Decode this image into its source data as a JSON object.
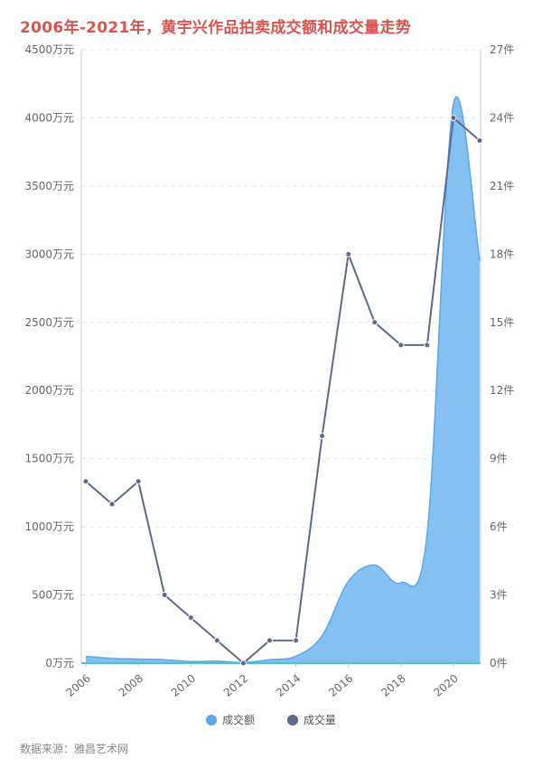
{
  "title": "2006年-2021年，黄宇兴作品拍卖成交额和成交量走势",
  "source": "数据来源：雅昌艺术网",
  "colors": {
    "title": "#d9534f",
    "amount_fill": "#7dbdf0",
    "amount_line": "#5ba8e6",
    "count_line": "#5e6a8a",
    "grid": "#e6e6e6",
    "baseline": "#4fc3c3"
  },
  "chart_data": {
    "type": "area",
    "categories": [
      "2006",
      "2007",
      "2008",
      "2009",
      "2010",
      "2011",
      "2012",
      "2013",
      "2014",
      "2015",
      "2016",
      "2017",
      "2018",
      "2019",
      "2020",
      "2021"
    ],
    "x_tick_labels": [
      "2006",
      "2008",
      "2010",
      "2012",
      "2014",
      "2016",
      "2018",
      "2020"
    ],
    "left_axis": {
      "ticks": [
        "0万元",
        "500万元",
        "1000万元",
        "1500万元",
        "2000万元",
        "2500万元",
        "3000万元",
        "3500万元",
        "4000万元",
        "4500万元"
      ],
      "ylim": [
        0,
        4500
      ]
    },
    "right_axis": {
      "ticks": [
        "0件",
        "3件",
        "6件",
        "9件",
        "12件",
        "15件",
        "18件",
        "21件",
        "24件",
        "27件"
      ],
      "ylim": [
        0,
        27
      ]
    },
    "series": [
      {
        "name": "成交额",
        "type": "area",
        "axis": "left",
        "values": [
          50,
          35,
          30,
          25,
          12,
          15,
          5,
          25,
          50,
          200,
          600,
          720,
          590,
          950,
          4100,
          2950
        ]
      },
      {
        "name": "成交量",
        "type": "line",
        "axis": "right",
        "values": [
          8,
          7,
          8,
          3,
          2,
          1,
          0,
          1,
          1,
          10,
          18,
          15,
          14,
          14,
          24,
          23
        ]
      }
    ],
    "grid": true,
    "legend_position": "bottom"
  }
}
